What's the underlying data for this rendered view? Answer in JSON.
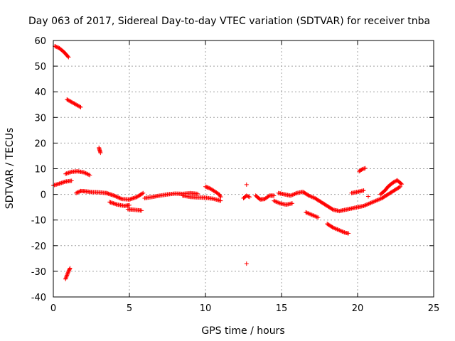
{
  "chart_data": {
    "type": "scatter",
    "title": "Day 063 of 2017, Sidereal Day-to-day VTEC variation (SDTVAR) for receiver tnba",
    "xlabel": "GPS time / hours",
    "ylabel": "SDTVAR / TECUs",
    "xlim": [
      0,
      25
    ],
    "ylim": [
      -40,
      60
    ],
    "xticks": [
      0,
      5,
      10,
      15,
      20,
      25
    ],
    "yticks": [
      -40,
      -30,
      -20,
      -10,
      0,
      10,
      20,
      30,
      40,
      50,
      60
    ],
    "grid": true,
    "marker": "+",
    "color": "#ff0000",
    "segments": [
      [
        [
          0.0,
          3.5
        ],
        [
          0.4,
          4.2
        ],
        [
          0.8,
          5.0
        ],
        [
          1.2,
          5.3
        ]
      ],
      [
        [
          0.1,
          57.8
        ],
        [
          0.4,
          57.0
        ],
        [
          0.7,
          55.5
        ],
        [
          1.0,
          53.5
        ]
      ],
      [
        [
          0.8,
          -33.0
        ],
        [
          0.9,
          -31.5
        ],
        [
          1.0,
          -30.0
        ],
        [
          1.1,
          -28.8
        ]
      ],
      [
        [
          0.9,
          37.0
        ],
        [
          1.2,
          36.0
        ],
        [
          1.5,
          35.0
        ],
        [
          1.8,
          34.0
        ]
      ],
      [
        [
          0.8,
          8.0
        ],
        [
          1.2,
          8.8
        ],
        [
          1.6,
          9.0
        ],
        [
          2.0,
          8.6
        ],
        [
          2.4,
          7.5
        ]
      ],
      [
        [
          1.5,
          0.5
        ],
        [
          1.8,
          1.3
        ],
        [
          2.1,
          1.2
        ],
        [
          2.5,
          0.9
        ],
        [
          3.0,
          0.8
        ],
        [
          3.5,
          0.5
        ]
      ],
      [
        [
          3.0,
          18.2
        ],
        [
          3.05,
          17.2
        ],
        [
          3.1,
          16.2
        ]
      ],
      [
        [
          3.5,
          0.5
        ],
        [
          4.0,
          -0.5
        ],
        [
          4.5,
          -1.8
        ],
        [
          5.0,
          -2.0
        ],
        [
          5.5,
          -1.0
        ],
        [
          5.9,
          0.5
        ]
      ],
      [
        [
          3.7,
          -3.0
        ],
        [
          4.2,
          -4.0
        ],
        [
          4.7,
          -4.5
        ],
        [
          5.0,
          -4.2
        ]
      ],
      [
        [
          4.9,
          -5.8
        ],
        [
          5.3,
          -6.0
        ],
        [
          5.8,
          -6.3
        ]
      ],
      [
        [
          6.0,
          -1.5
        ],
        [
          6.5,
          -1.0
        ],
        [
          7.0,
          -0.5
        ],
        [
          7.5,
          0.0
        ],
        [
          8.0,
          0.3
        ],
        [
          8.5,
          0.2
        ],
        [
          9.0,
          0.5
        ],
        [
          9.5,
          0.2
        ]
      ],
      [
        [
          8.5,
          -0.5
        ],
        [
          9.0,
          -1.0
        ],
        [
          9.5,
          -1.2
        ],
        [
          10.0,
          -1.3
        ],
        [
          10.5,
          -1.7
        ],
        [
          11.0,
          -2.5
        ]
      ],
      [
        [
          10.0,
          3.0
        ],
        [
          10.3,
          2.3
        ],
        [
          10.6,
          1.2
        ],
        [
          10.9,
          0.0
        ],
        [
          11.0,
          -1.0
        ]
      ],
      [
        [
          12.5,
          -1.5
        ],
        [
          12.7,
          -0.5
        ],
        [
          12.9,
          -1.0
        ]
      ],
      [
        [
          12.7,
          3.8
        ]
      ],
      [
        [
          12.7,
          -27.0
        ]
      ],
      [
        [
          13.3,
          -0.5
        ],
        [
          13.6,
          -2.0
        ],
        [
          13.9,
          -1.8
        ],
        [
          14.2,
          -0.5
        ],
        [
          14.5,
          -0.5
        ]
      ],
      [
        [
          14.5,
          -2.5
        ],
        [
          14.9,
          -3.5
        ],
        [
          15.3,
          -4.0
        ],
        [
          15.7,
          -3.5
        ]
      ],
      [
        [
          14.8,
          0.5
        ],
        [
          15.2,
          0.0
        ],
        [
          15.6,
          -0.5
        ],
        [
          16.0,
          0.5
        ],
        [
          16.4,
          1.0
        ],
        [
          16.8,
          -0.5
        ],
        [
          17.2,
          -1.5
        ],
        [
          17.6,
          -3.0
        ],
        [
          18.0,
          -4.5
        ],
        [
          18.4,
          -6.0
        ],
        [
          18.8,
          -6.5
        ],
        [
          19.2,
          -6.0
        ],
        [
          19.6,
          -5.5
        ],
        [
          20.0,
          -5.0
        ],
        [
          20.4,
          -4.5
        ],
        [
          20.8,
          -3.5
        ],
        [
          21.2,
          -2.5
        ],
        [
          21.6,
          -1.5
        ],
        [
          22.0,
          0.0
        ],
        [
          22.4,
          1.5
        ],
        [
          22.8,
          3.0
        ]
      ],
      [
        [
          16.6,
          -7.0
        ],
        [
          17.0,
          -8.0
        ],
        [
          17.4,
          -9.0
        ]
      ],
      [
        [
          18.0,
          -11.5
        ],
        [
          18.4,
          -13.0
        ],
        [
          18.8,
          -14.0
        ],
        [
          19.2,
          -15.0
        ],
        [
          19.4,
          -15.2
        ]
      ],
      [
        [
          19.6,
          0.5
        ],
        [
          20.0,
          1.0
        ],
        [
          20.4,
          1.5
        ]
      ],
      [
        [
          20.1,
          9.0
        ],
        [
          20.3,
          9.8
        ],
        [
          20.5,
          10.2
        ]
      ],
      [
        [
          20.7,
          -0.8
        ]
      ],
      [
        [
          21.5,
          0.0
        ],
        [
          21.8,
          1.5
        ],
        [
          22.0,
          3.0
        ],
        [
          22.3,
          4.5
        ],
        [
          22.6,
          5.5
        ],
        [
          22.9,
          4.0
        ]
      ]
    ]
  }
}
